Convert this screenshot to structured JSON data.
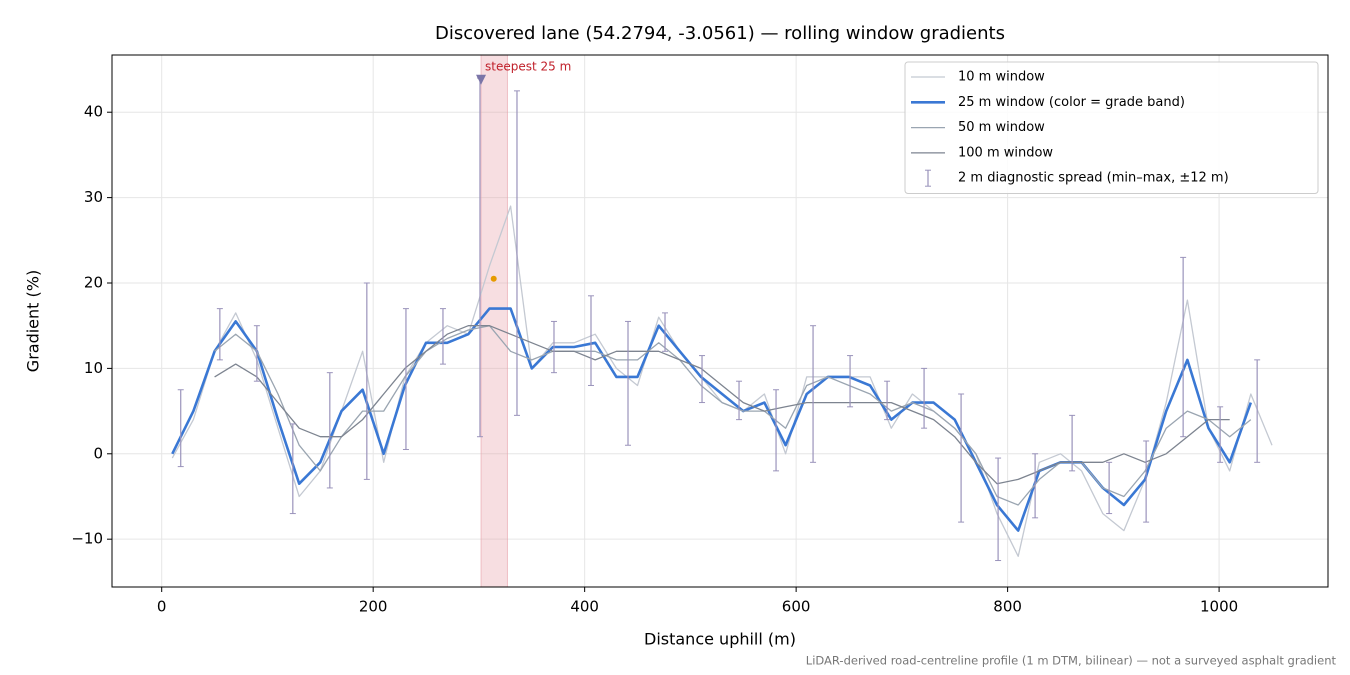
{
  "chart_data": {
    "type": "line",
    "title": "Discovered lane (54.2794, -3.0561) — rolling window gradients",
    "x_label": "Distance uphill (m)",
    "y_label": "Gradient (%)",
    "note": "LiDAR-derived road-centreline profile (1 m DTM, bilinear) — not a surveyed asphalt gradient",
    "xlim": [
      -47,
      1103
    ],
    "ylim": [
      -15.6,
      46.7
    ],
    "xticks": [
      0,
      200,
      400,
      600,
      800,
      1000
    ],
    "yticks": [
      {
        "value": -10,
        "label": "−10"
      },
      0,
      10,
      20,
      30,
      40
    ],
    "grid": true,
    "legend": "upper right",
    "x": [
      10,
      30,
      50,
      70,
      90,
      110,
      130,
      150,
      170,
      190,
      210,
      230,
      250,
      270,
      290,
      310,
      330,
      350,
      370,
      390,
      410,
      430,
      450,
      470,
      490,
      510,
      530,
      550,
      570,
      590,
      610,
      630,
      650,
      670,
      690,
      710,
      730,
      750,
      770,
      790,
      810,
      830,
      850,
      870,
      890,
      910,
      930,
      950,
      970,
      990,
      1010,
      1030,
      1050
    ],
    "series": [
      {
        "name": "10 m window",
        "color": "#c4c9d2",
        "line_width": 1.3,
        "values": [
          -0.5,
          4,
          12,
          16.5,
          11,
          3,
          -5,
          -2,
          5,
          12,
          -1,
          9,
          13,
          15,
          14,
          22,
          29,
          10,
          13,
          13,
          14,
          10,
          8,
          16,
          12,
          9,
          6,
          5,
          7,
          0,
          9,
          9,
          9,
          9,
          3,
          7,
          5,
          3,
          0,
          -7,
          -12,
          -1,
          0,
          -2,
          -7,
          -9,
          -3,
          6,
          18,
          3,
          -2,
          7,
          1
        ]
      },
      {
        "name": "25 m window (color = grade band)",
        "color": "#3a78d4",
        "line_width": 2.6,
        "values": [
          0,
          5,
          12,
          15.5,
          12,
          4,
          -3.5,
          -1,
          5,
          7.5,
          0,
          8,
          13,
          13,
          14,
          17,
          17,
          10,
          12.5,
          12.5,
          13,
          9,
          9,
          15,
          12,
          9,
          7,
          5,
          6,
          1,
          7,
          9,
          9,
          8,
          4,
          6,
          6,
          4,
          -1,
          -6,
          -9,
          -2,
          -1,
          -1,
          -4,
          -6,
          -3,
          5,
          11,
          3,
          -1,
          6,
          null
        ]
      },
      {
        "name": "50 m window",
        "color": "#9aa5b1",
        "line_width": 1.3,
        "values": [
          null,
          null,
          12,
          14,
          12,
          7,
          1,
          -2,
          2,
          5,
          5,
          9,
          12,
          13.5,
          14.5,
          15,
          12,
          11,
          12,
          12,
          12,
          11,
          11,
          13,
          11,
          8,
          6,
          5,
          5,
          3,
          8,
          9,
          8,
          7,
          5,
          6,
          5,
          3,
          0,
          -5,
          -6,
          -3,
          -1,
          -1,
          -4,
          -5,
          -2,
          3,
          5,
          4,
          2,
          4,
          null
        ]
      },
      {
        "name": "100 m window",
        "color": "#7d8490",
        "line_width": 1.3,
        "values": [
          null,
          null,
          9,
          10.5,
          9,
          6,
          3,
          2,
          2,
          4,
          7,
          10,
          12,
          14,
          15,
          15,
          14,
          13,
          12,
          12,
          11,
          12,
          12,
          12,
          11,
          10,
          8,
          6,
          5,
          5.5,
          6,
          6,
          6,
          6,
          6,
          5,
          4,
          2,
          -1,
          -3.5,
          -3,
          -2,
          -1,
          -1,
          -1,
          0,
          -1,
          0,
          2,
          4,
          4,
          null,
          null
        ]
      }
    ],
    "errorbars": {
      "name": "2 m diagnostic spread (min–max, ±12 m)",
      "color": "#9a93bb",
      "x": [
        18,
        55,
        90,
        124,
        159,
        194,
        231,
        266,
        301,
        336,
        371,
        406,
        441,
        476,
        511,
        546,
        581,
        616,
        651,
        686,
        721,
        756,
        791,
        826,
        861,
        896,
        931,
        966,
        1001,
        1036
      ],
      "low": [
        -1.5,
        11,
        8.5,
        -7,
        -4,
        -3,
        0.5,
        10.5,
        2,
        4.5,
        9.5,
        8,
        1,
        12,
        6,
        4,
        -2,
        -1,
        5.5,
        4,
        3,
        -8,
        -12.5,
        -7.5,
        -2,
        -7,
        -8,
        2,
        -1,
        -1
      ],
      "high": [
        7.5,
        17,
        15,
        3.5,
        9.5,
        20,
        17,
        17,
        44,
        42.5,
        15.5,
        18.5,
        15.5,
        16.5,
        11.5,
        8.5,
        7.5,
        15,
        11.5,
        8.5,
        10,
        7,
        -0.5,
        0,
        4.5,
        -1,
        1.5,
        23,
        5.5,
        11
      ]
    },
    "highlight": {
      "x_range": [
        302,
        327
      ],
      "label": "steepest 25 m",
      "marker_y": 43.8,
      "color": "#e8a0a8"
    },
    "peak": {
      "x": 314,
      "y": 20.5,
      "color": "#e69a00"
    }
  }
}
